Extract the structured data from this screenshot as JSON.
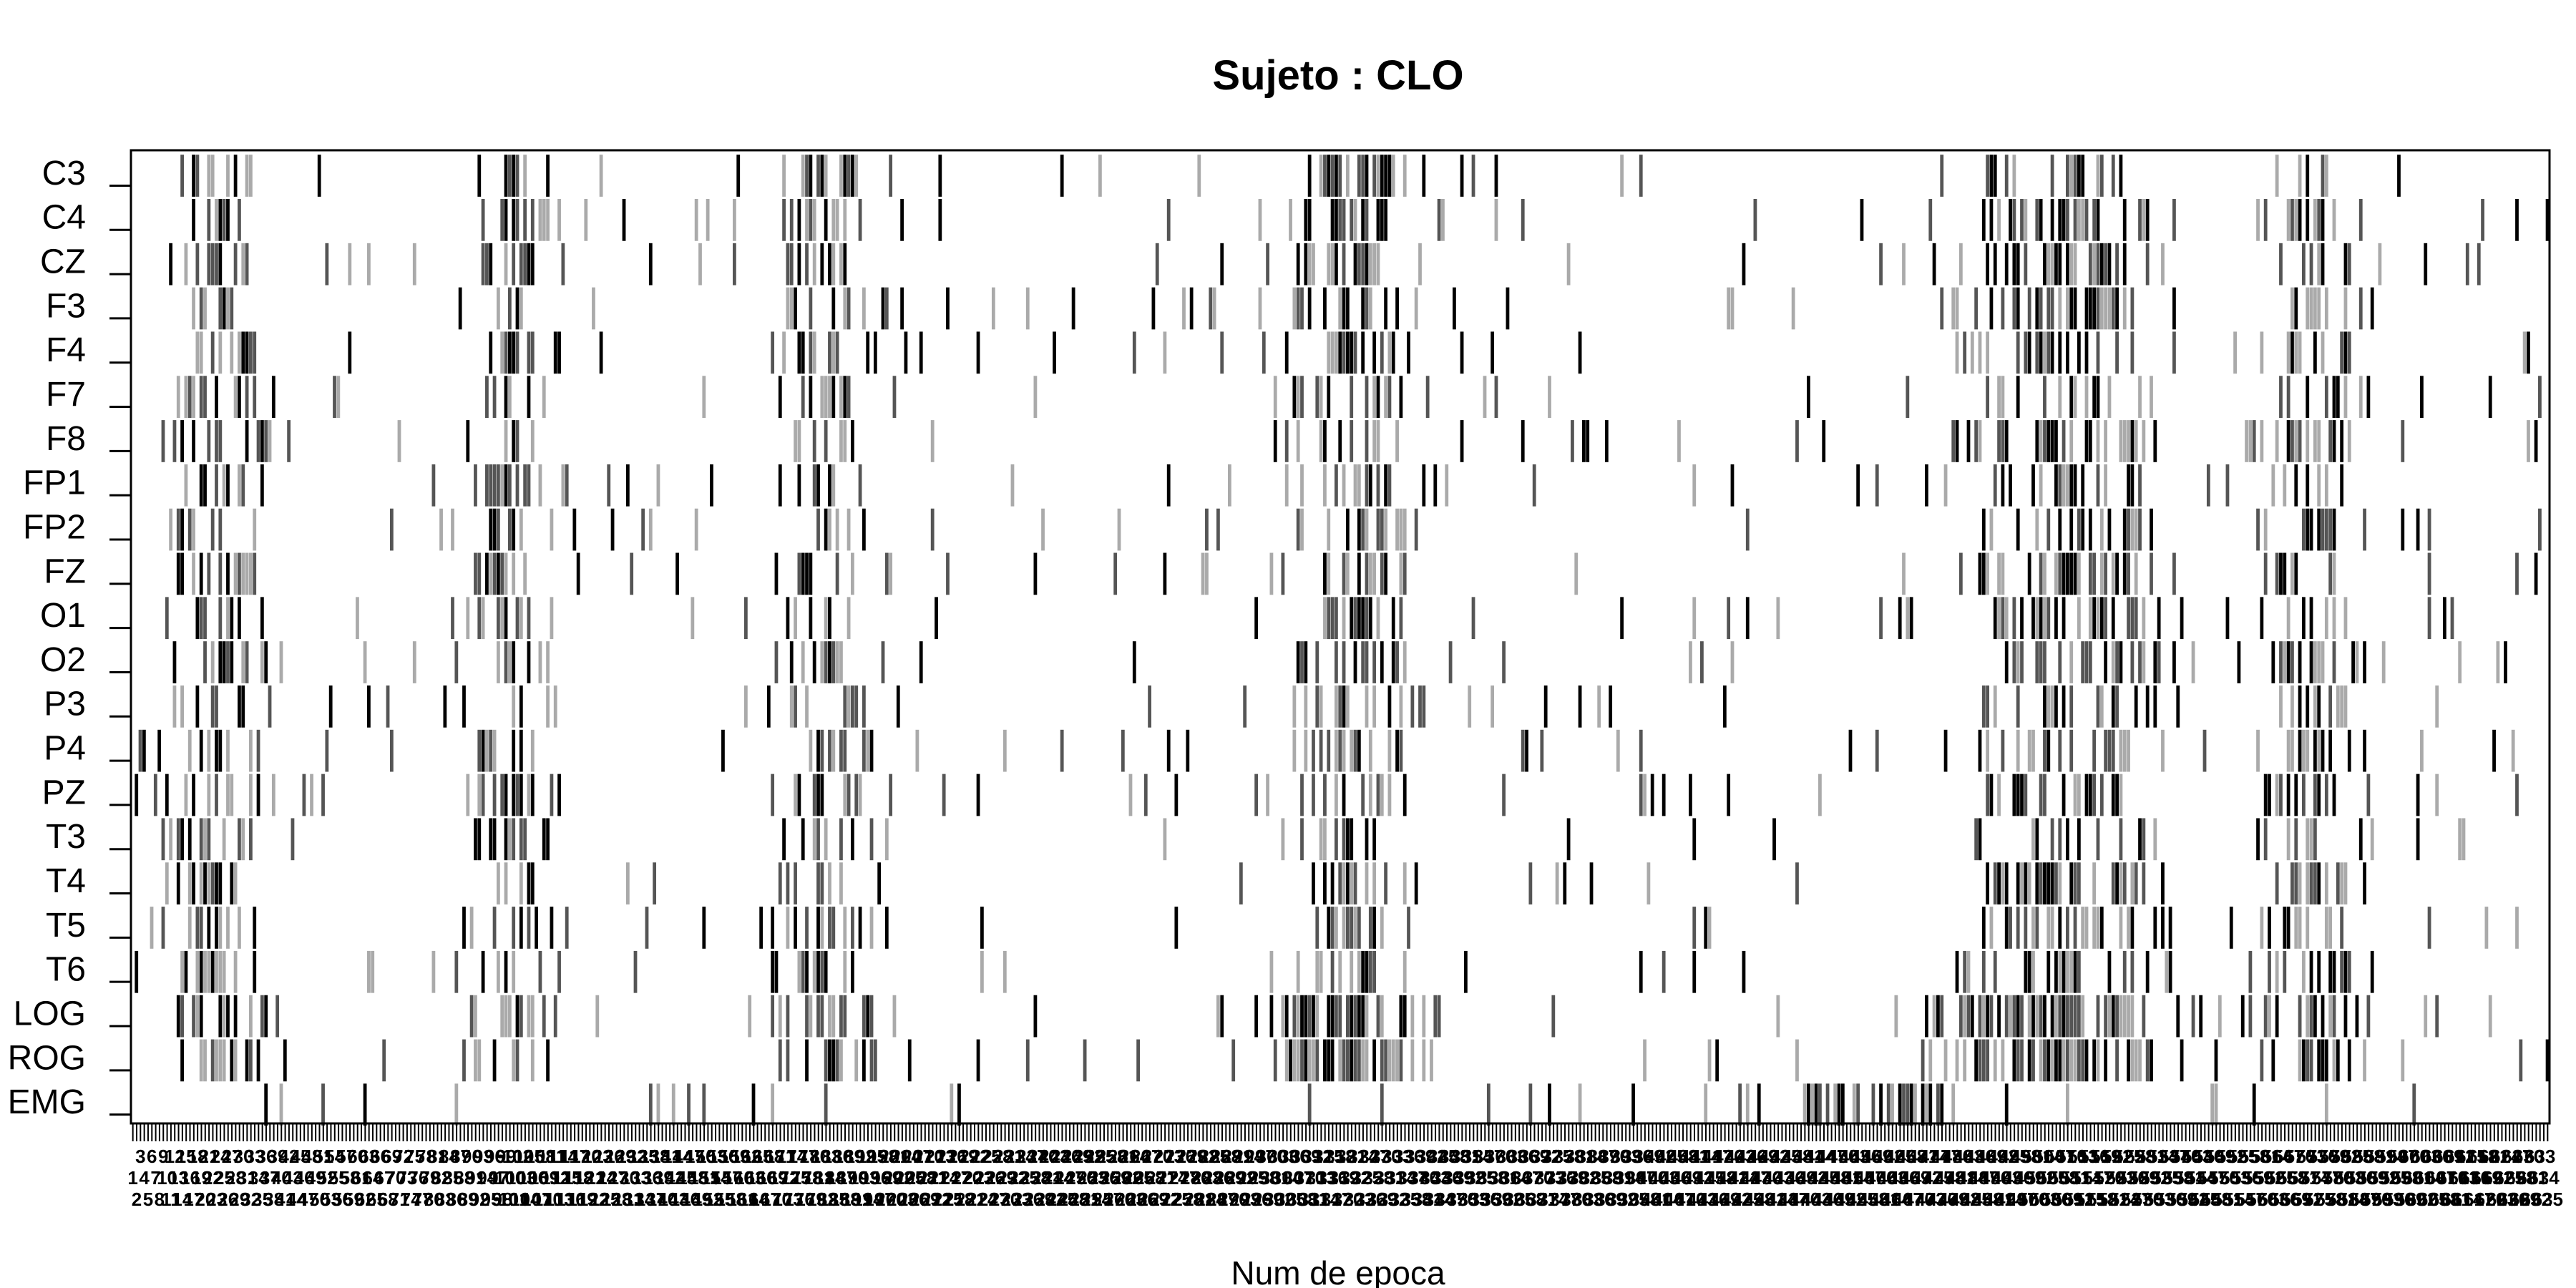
{
  "chart_data": {
    "type": "heatmap",
    "title": "Sujeto : CLO",
    "xlabel": "Num de epoca",
    "ylabel": "",
    "rows": [
      "C3",
      "C4",
      "CZ",
      "F3",
      "F4",
      "F7",
      "F8",
      "FP1",
      "FP2",
      "FZ",
      "O1",
      "O2",
      "P3",
      "P4",
      "PZ",
      "T3",
      "T4",
      "T5",
      "T6",
      "LOG",
      "ROG",
      "EMG"
    ],
    "x_range": [
      1,
      635
    ],
    "color_scale": [
      "#ffffff",
      "#000000"
    ],
    "grid": false,
    "legend": "none",
    "activity_clusters": [
      {
        "start": 12,
        "end": 35,
        "rows": "all EEG + LOG/ROG"
      },
      {
        "start": 90,
        "end": 110,
        "rows": "all EEG + LOG/ROG"
      },
      {
        "start": 170,
        "end": 195,
        "rows": "all EEG + LOG/ROG"
      },
      {
        "start": 300,
        "end": 340,
        "rows": "all EEG, dense in LOG/ROG"
      },
      {
        "start": 445,
        "end": 475,
        "rows": "EMG"
      },
      {
        "start": 475,
        "end": 540,
        "rows": "all EEG, dense in LOG/ROG"
      },
      {
        "start": 560,
        "end": 585,
        "rows": "ROG, LOG"
      }
    ]
  }
}
